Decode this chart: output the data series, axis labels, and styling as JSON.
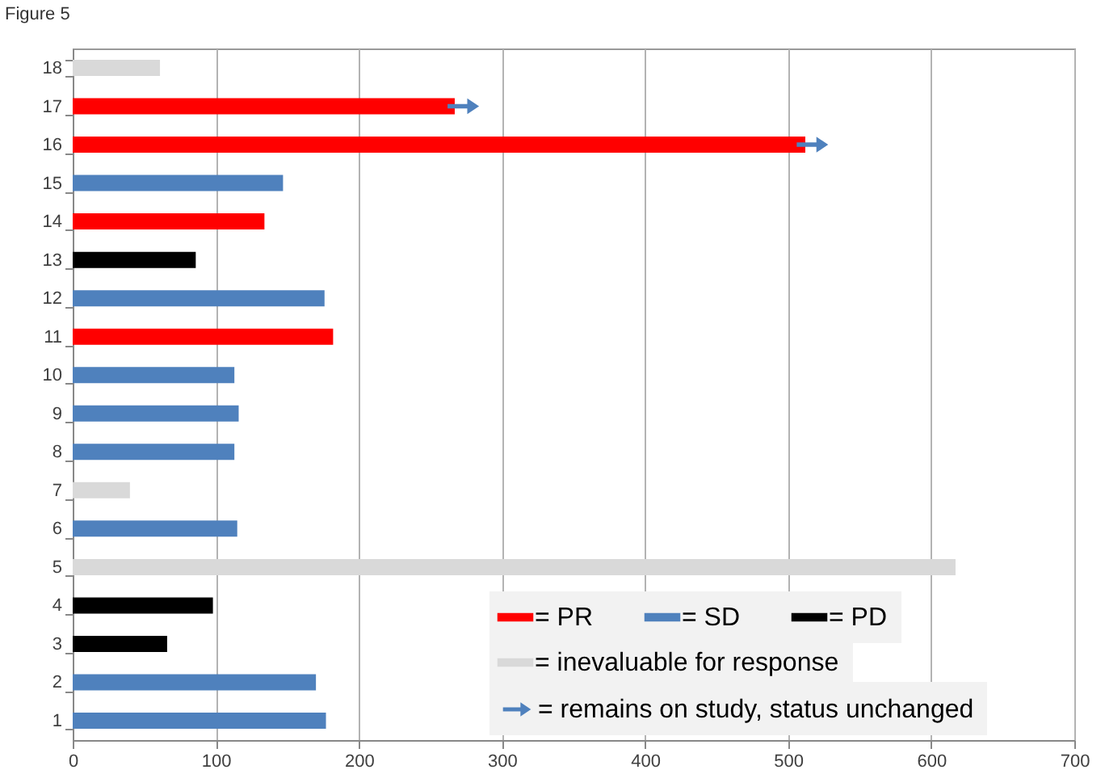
{
  "chart_data": {
    "type": "bar",
    "orientation": "horizontal",
    "title": "Figure 5",
    "categories": [
      "18",
      "17",
      "16",
      "15",
      "14",
      "13",
      "12",
      "11",
      "10",
      "9",
      "8",
      "7",
      "6",
      "5",
      "4",
      "3",
      "2",
      "1"
    ],
    "series": [
      {
        "name": "= PR",
        "color": "#ff0000",
        "values": [
          null,
          267,
          512,
          null,
          134,
          null,
          null,
          182,
          null,
          null,
          null,
          null,
          null,
          null,
          null,
          null,
          null,
          null
        ]
      },
      {
        "name": "= SD",
        "color": "#4f81bd",
        "values": [
          null,
          null,
          null,
          147,
          null,
          null,
          176,
          null,
          113,
          116,
          113,
          null,
          115,
          null,
          null,
          null,
          170,
          177
        ]
      },
      {
        "name": "= PD",
        "color": "#000000",
        "values": [
          null,
          null,
          null,
          null,
          null,
          86,
          null,
          null,
          null,
          null,
          null,
          null,
          null,
          null,
          98,
          66,
          null,
          null
        ]
      },
      {
        "name": "= inevaluable for response",
        "color": "#d9d9d9",
        "values": [
          61,
          null,
          null,
          null,
          null,
          null,
          null,
          null,
          null,
          null,
          null,
          40,
          null,
          617,
          null,
          null,
          null,
          null
        ]
      },
      {
        "name": "= remains on study, status unchanged",
        "type": "scatter",
        "color": "#4f81bd",
        "values": [
          null,
          273,
          517,
          null,
          null,
          null,
          null,
          null,
          null,
          null,
          null,
          null,
          null,
          null,
          null,
          null,
          null,
          null
        ]
      }
    ],
    "xlim": [
      0,
      700
    ],
    "xticks": [
      0,
      100,
      200,
      300,
      400,
      500,
      600,
      700
    ],
    "grid": "x",
    "legend": "bottom right"
  }
}
